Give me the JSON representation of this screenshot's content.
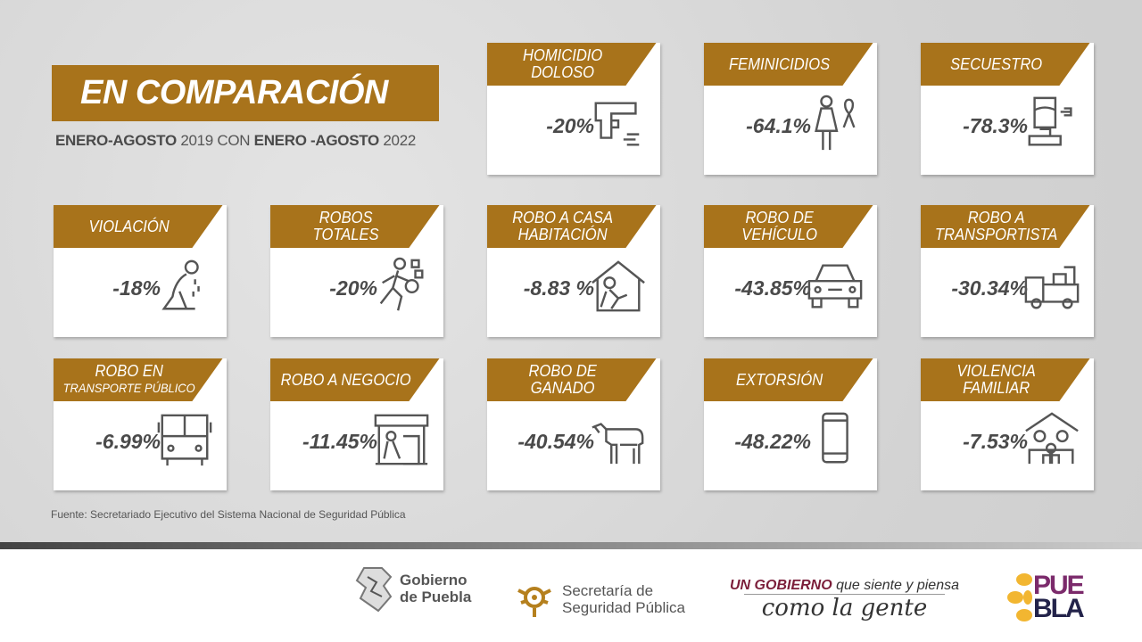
{
  "title": "EN COMPARACIÓN",
  "subtitle": {
    "a": "ENERO-AGOSTO",
    "b": " 2019 CON ",
    "c": "ENERO -AGOSTO",
    "d": " 2022"
  },
  "colors": {
    "accent": "#a8731b",
    "text": "#4a4a4a"
  },
  "cards": [
    {
      "label": [
        "HOMICIDIO",
        "DOLOSO"
      ],
      "value": "-20%",
      "icon": "pistol-icon"
    },
    {
      "label": [
        "FEMINICIDIOS",
        ""
      ],
      "value": "-64.1%",
      "icon": "woman-ribbon-icon"
    },
    {
      "label": [
        "SECUESTRO",
        ""
      ],
      "value": "-78.3%",
      "icon": "hostage-icon"
    },
    {
      "label": [
        "VIOLACIÓN",
        ""
      ],
      "value": "-18%",
      "icon": "crying-person-icon"
    },
    {
      "label": [
        "ROBOS",
        "TOTALES"
      ],
      "value": "-20%",
      "icon": "thief-running-icon"
    },
    {
      "label": [
        "ROBO A CASA",
        "HABITACIÓN"
      ],
      "value": "-8.83 %",
      "icon": "house-burglar-icon"
    },
    {
      "label": [
        "ROBO DE",
        "VEHÍCULO"
      ],
      "value": "-43.85%",
      "icon": "car-icon"
    },
    {
      "label": [
        "ROBO A",
        "TRANSPORTISTA"
      ],
      "value": "-30.34%",
      "icon": "truck-icon"
    },
    {
      "label": [
        "ROBO EN",
        "TRANSPORTE PÚBLICO"
      ],
      "value": "-6.99%",
      "icon": "bus-icon"
    },
    {
      "label": [
        "ROBO A NEGOCIO",
        ""
      ],
      "value": "-11.45%",
      "icon": "store-icon"
    },
    {
      "label": [
        "ROBO DE",
        "GANADO"
      ],
      "value": "-40.54%",
      "icon": "cow-icon"
    },
    {
      "label": [
        "EXTORSIÓN",
        ""
      ],
      "value": "-48.22%",
      "icon": "phone-icon"
    },
    {
      "label": [
        "VIOLENCIA",
        "FAMILIAR"
      ],
      "value": "-7.53%",
      "icon": "family-house-icon"
    }
  ],
  "source": "Fuente: Secretariado Ejecutivo del  Sistema Nacional de Seguridad Pública",
  "footer": {
    "gobierno": [
      "Gobierno",
      "de Puebla"
    ],
    "ssp": [
      "Secretaría de",
      "Seguridad Pública"
    ],
    "slogan_a": "UN GOBIERNO",
    "slogan_b": " que siente y piensa",
    "slogan_c": "como la gente",
    "puebla": [
      "PUE",
      "BLA"
    ]
  }
}
